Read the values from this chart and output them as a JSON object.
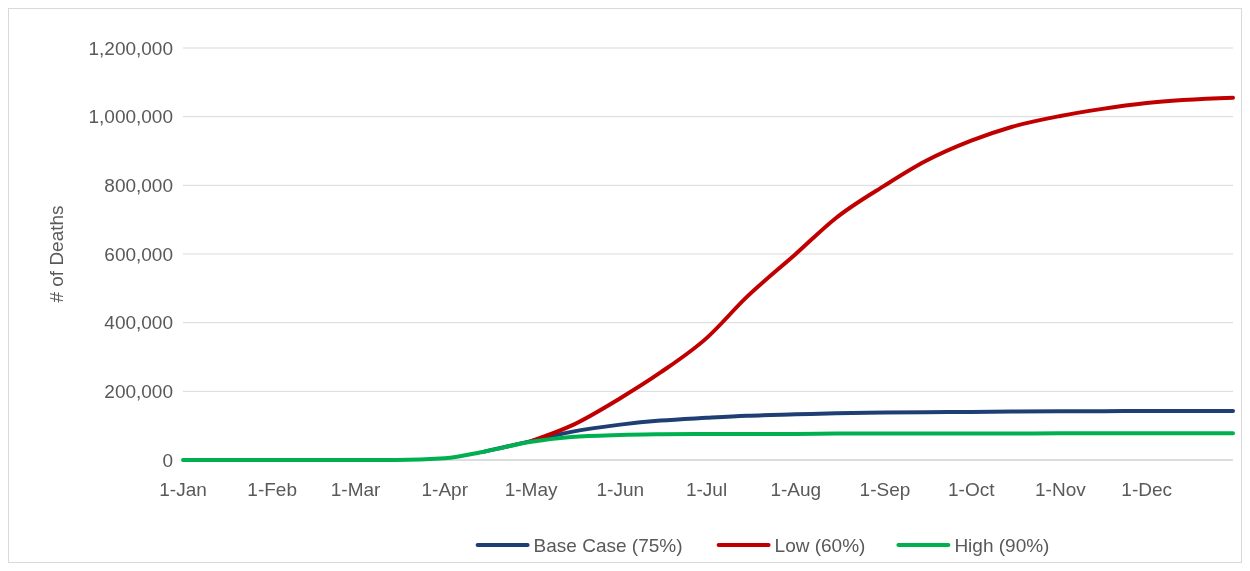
{
  "chart_data": {
    "type": "line",
    "ylabel": "# of Deaths",
    "x": [
      "--01-01",
      "--02-01",
      "--03-01",
      "--03-15",
      "--04-01",
      "--04-15",
      "--05-01",
      "--05-15",
      "--06-01",
      "--06-15",
      "--07-01",
      "--07-15",
      "--08-01",
      "--08-15",
      "--09-01",
      "--09-15",
      "--10-01",
      "--10-15",
      "--11-01",
      "--11-15",
      "--12-01",
      "--12-31"
    ],
    "series": [
      {
        "name": "Base Case (75%)",
        "color": "#1f3f74",
        "values": [
          null,
          null,
          null,
          null,
          null,
          25000,
          55000,
          82000,
          103000,
          115000,
          123000,
          129000,
          133000,
          136000,
          138000,
          139000,
          140000,
          141000,
          142000,
          142000,
          143000,
          143000
        ]
      },
      {
        "name": "Low (60%)",
        "color": "#c00000",
        "values": [
          null,
          null,
          null,
          null,
          null,
          null,
          55000,
          100000,
          180000,
          255000,
          355000,
          475000,
          600000,
          705000,
          800000,
          870000,
          930000,
          970000,
          1002000,
          1022000,
          1040000,
          1055000
        ]
      },
      {
        "name": "High (90%)",
        "color": "#00b050",
        "values": [
          0,
          0,
          0,
          0,
          5000,
          25000,
          53000,
          67000,
          73000,
          75000,
          76000,
          76000,
          76000,
          77000,
          77000,
          77000,
          77000,
          77000,
          78000,
          78000,
          78000,
          78000
        ]
      }
    ],
    "xlim": [
      "--01-01",
      "--12-31"
    ],
    "xticks": [
      {
        "value": "--01-01",
        "label": "1-Jan"
      },
      {
        "value": "--02-01",
        "label": "1-Feb"
      },
      {
        "value": "--03-01",
        "label": "1-Mar"
      },
      {
        "value": "--04-01",
        "label": "1-Apr"
      },
      {
        "value": "--05-01",
        "label": "1-May"
      },
      {
        "value": "--06-01",
        "label": "1-Jun"
      },
      {
        "value": "--07-01",
        "label": "1-Jul"
      },
      {
        "value": "--08-01",
        "label": "1-Aug"
      },
      {
        "value": "--09-01",
        "label": "1-Sep"
      },
      {
        "value": "--10-01",
        "label": "1-Oct"
      },
      {
        "value": "--11-01",
        "label": "1-Nov"
      },
      {
        "value": "--12-01",
        "label": "1-Dec"
      }
    ],
    "ylim": [
      0,
      1200000
    ],
    "yticks": [
      {
        "value": 0,
        "label": "0"
      },
      {
        "value": 200000,
        "label": "200,000"
      },
      {
        "value": 400000,
        "label": "400,000"
      },
      {
        "value": 600000,
        "label": "600,000"
      },
      {
        "value": 800000,
        "label": "800,000"
      },
      {
        "value": 1000000,
        "label": "1,000,000"
      },
      {
        "value": 1200000,
        "label": "1,200,000"
      }
    ],
    "grid": "y",
    "legend": "bottom",
    "marker": "none",
    "line_style": "solid"
  }
}
